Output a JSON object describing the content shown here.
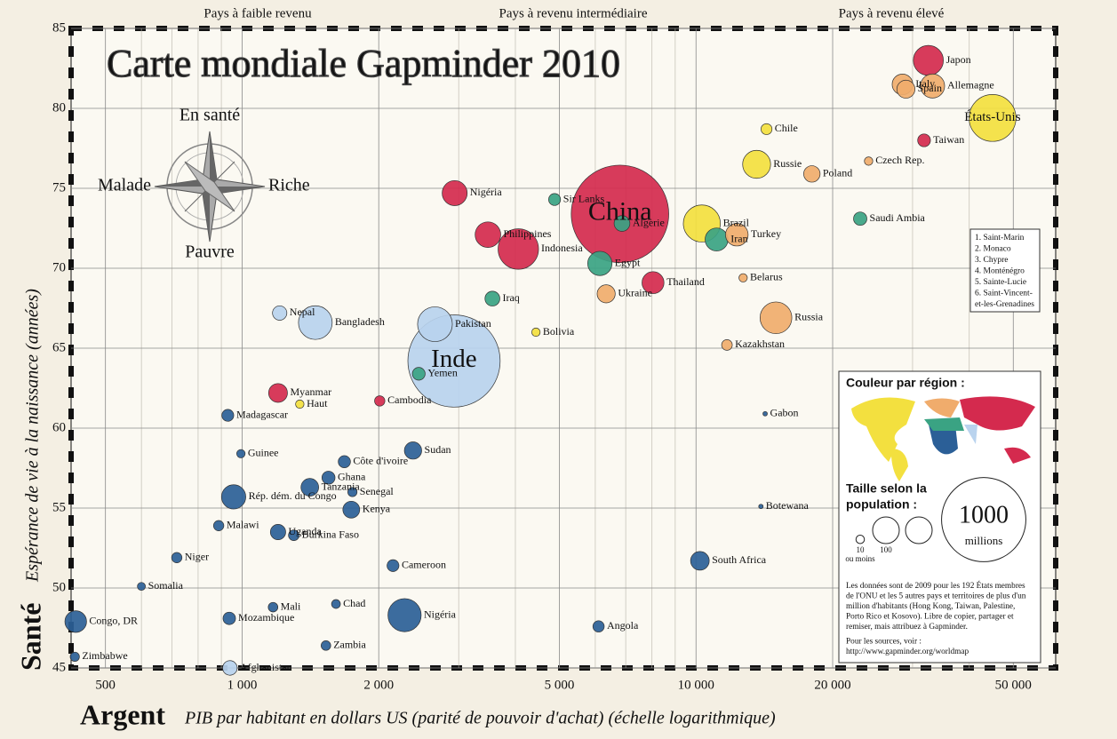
{
  "chart_data": {
    "type": "scatter",
    "title": "Carte mondiale Gapminder 2010",
    "income_bands": [
      "Pays à faible revenu",
      "Pays à revenu intermédiaire",
      "Pays à revenu élevé"
    ],
    "x_label_main": "Argent",
    "x_label": "PIB par habitant en dollars US (parité de pouvoir d'achat) (échelle logarithmique)",
    "y_label_main": "Santé",
    "y_label": "Espérance de vie à la naissance (années)",
    "xscale": "log",
    "xlim": [
      420,
      62000
    ],
    "ylim": [
      45,
      85
    ],
    "xticks": [
      500,
      {
        "value": 1000,
        "label": "1 000"
      },
      {
        "value": 2000,
        "label": "2 000"
      },
      {
        "value": 5000,
        "label": "5 000"
      },
      {
        "value": 10000,
        "label": "10 000"
      },
      {
        "value": 20000,
        "label": "20 000"
      },
      {
        "value": 50000,
        "label": "50 000"
      }
    ],
    "x_minor_grid": [
      600,
      700,
      800,
      900,
      3000,
      4000,
      6000,
      7000,
      8000,
      9000,
      30000,
      40000
    ],
    "yticks": [
      45,
      50,
      55,
      60,
      65,
      70,
      75,
      80,
      85
    ],
    "grid": true,
    "points": [
      {
        "name": "China",
        "x": 6800,
        "y": 73.4,
        "size": 1338,
        "color": "#d42a4e"
      },
      {
        "name": "Inde",
        "x": 2930,
        "y": 64.2,
        "size": 1198,
        "color": "#b9d3ee"
      },
      {
        "name": "États-Unis",
        "x": 45000,
        "y": 79.4,
        "size": 310,
        "color": "#f3e03f"
      },
      {
        "name": "Indonesia",
        "x": 4060,
        "y": 71.2,
        "size": 230,
        "color": "#d42a4e"
      },
      {
        "name": "Brazil",
        "x": 10300,
        "y": 72.8,
        "size": 193,
        "color": "#f3e03f"
      },
      {
        "name": "Pakistan",
        "x": 2660,
        "y": 66.5,
        "size": 170,
        "color": "#b9d3ee"
      },
      {
        "name": "Bangladesh",
        "x": 1450,
        "y": 66.6,
        "size": 160,
        "color": "#b9d3ee"
      },
      {
        "name": "Nigéria",
        "x": 2280,
        "y": 48.3,
        "size": 155,
        "color": "#2b5f97"
      },
      {
        "name": "Russia",
        "x": 15000,
        "y": 66.9,
        "size": 142,
        "color": "#f0ac6c"
      },
      {
        "name": "Japon",
        "x": 32500,
        "y": 83.0,
        "size": 127,
        "color": "#d42a4e"
      },
      {
        "name": "Russie",
        "x": 13600,
        "y": 76.5,
        "size": 110,
        "color": "#f3e03f"
      },
      {
        "name": "Philippines",
        "x": 3480,
        "y": 72.1,
        "size": 92,
        "color": "#d42a4e"
      },
      {
        "name": "Nigéria",
        "x": 2940,
        "y": 74.7,
        "size": 88,
        "color": "#d42a4e"
      },
      {
        "name": "Egypt",
        "x": 6140,
        "y": 70.3,
        "size": 83,
        "color": "#3aa383"
      },
      {
        "name": "Rép. dém. du Congo",
        "x": 958,
        "y": 55.7,
        "size": 83,
        "color": "#2b5f97"
      },
      {
        "name": "Allemagne",
        "x": 33200,
        "y": 81.4,
        "size": 82,
        "color": "#f0ac6c"
      },
      {
        "name": "Iran",
        "x": 11100,
        "y": 71.8,
        "size": 74,
        "color": "#3aa383"
      },
      {
        "name": "Turkey",
        "x": 12300,
        "y": 72.1,
        "size": 72,
        "color": "#f0ac6c"
      },
      {
        "name": "Thailand",
        "x": 8040,
        "y": 69.1,
        "size": 68,
        "color": "#d42a4e"
      },
      {
        "name": "Congo, DR",
        "x": 430,
        "y": 47.9,
        "size": 66,
        "color": "#2b5f97"
      },
      {
        "name": "Italy",
        "x": 28500,
        "y": 81.5,
        "size": 60,
        "color": "#f0ac6c"
      },
      {
        "name": "Myanmar",
        "x": 1200,
        "y": 62.2,
        "size": 50,
        "color": "#d42a4e"
      },
      {
        "name": "South Africa",
        "x": 10200,
        "y": 51.7,
        "size": 49,
        "color": "#2b5f97"
      },
      {
        "name": "Spain",
        "x": 29000,
        "y": 81.2,
        "size": 46,
        "color": "#f0ac6c"
      },
      {
        "name": "Ukraine",
        "x": 6340,
        "y": 68.4,
        "size": 46,
        "color": "#f0ac6c"
      },
      {
        "name": "Tanzania",
        "x": 1410,
        "y": 56.3,
        "size": 44,
        "color": "#2b5f97"
      },
      {
        "name": "Sudan",
        "x": 2380,
        "y": 58.6,
        "size": 42,
        "color": "#2b5f97"
      },
      {
        "name": "Kenya",
        "x": 1740,
        "y": 54.9,
        "size": 40,
        "color": "#2b5f97"
      },
      {
        "name": "Poland",
        "x": 18000,
        "y": 75.9,
        "size": 38,
        "color": "#f0ac6c"
      },
      {
        "name": "Algerie",
        "x": 6870,
        "y": 72.8,
        "size": 35,
        "color": "#3aa383"
      },
      {
        "name": "Uganda",
        "x": 1200,
        "y": 53.5,
        "size": 33,
        "color": "#2b5f97"
      },
      {
        "name": "Iraq",
        "x": 3560,
        "y": 68.1,
        "size": 31,
        "color": "#3aa383"
      },
      {
        "name": "Afghanistan",
        "x": 940,
        "y": 45,
        "size": 30,
        "color": "#b9d3ee"
      },
      {
        "name": "Nepal",
        "x": 1210,
        "y": 67.2,
        "size": 29,
        "color": "#b9d3ee"
      },
      {
        "name": "Saudi Ambia",
        "x": 23000,
        "y": 73.1,
        "size": 25,
        "color": "#3aa383"
      },
      {
        "name": "Ghana",
        "x": 1550,
        "y": 56.9,
        "size": 24,
        "color": "#2b5f97"
      },
      {
        "name": "Yemen",
        "x": 2450,
        "y": 63.4,
        "size": 23,
        "color": "#3aa383"
      },
      {
        "name": "Taiwan",
        "x": 31800,
        "y": 78.0,
        "size": 23,
        "color": "#d42a4e"
      },
      {
        "name": "Mozambique",
        "x": 937,
        "y": 48.1,
        "size": 22,
        "color": "#2b5f97"
      },
      {
        "name": "Côte d'ivoire",
        "x": 1680,
        "y": 57.9,
        "size": 21,
        "color": "#2b5f97"
      },
      {
        "name": "Cameroon",
        "x": 2150,
        "y": 51.4,
        "size": 20,
        "color": "#2b5f97"
      },
      {
        "name": "Madagascar",
        "x": 930,
        "y": 60.8,
        "size": 20,
        "color": "#2b5f97"
      },
      {
        "name": "Sir Lanks",
        "x": 4880,
        "y": 74.3,
        "size": 20,
        "color": "#3aa383"
      },
      {
        "name": "Angola",
        "x": 6100,
        "y": 47.6,
        "size": 18,
        "color": "#2b5f97"
      },
      {
        "name": "Chile",
        "x": 14300,
        "y": 78.7,
        "size": 17,
        "color": "#f3e03f"
      },
      {
        "name": "Burkina Faso",
        "x": 1300,
        "y": 53.3,
        "size": 16,
        "color": "#2b5f97"
      },
      {
        "name": "Kazakhstan",
        "x": 11700,
        "y": 65.2,
        "size": 16,
        "color": "#f0ac6c"
      },
      {
        "name": "Malawi",
        "x": 888,
        "y": 53.9,
        "size": 15,
        "color": "#2b5f97"
      },
      {
        "name": "Niger",
        "x": 718,
        "y": 51.9,
        "size": 15,
        "color": "#2b5f97"
      },
      {
        "name": "Cambodia",
        "x": 2010,
        "y": 61.7,
        "size": 15,
        "color": "#d42a4e"
      },
      {
        "name": "Mali",
        "x": 1170,
        "y": 48.8,
        "size": 13,
        "color": "#2b5f97"
      },
      {
        "name": "Zambia",
        "x": 1530,
        "y": 46.4,
        "size": 13,
        "color": "#2b5f97"
      },
      {
        "name": "Zimbabwe",
        "x": 428,
        "y": 45.7,
        "size": 12,
        "color": "#2b5f97"
      },
      {
        "name": "Senegal",
        "x": 1750,
        "y": 56.0,
        "size": 12,
        "color": "#2b5f97"
      },
      {
        "name": "Chad",
        "x": 1610,
        "y": 49.0,
        "size": 11,
        "color": "#2b5f97"
      },
      {
        "name": "Czech Rep.",
        "x": 24000,
        "y": 76.7,
        "size": 10,
        "color": "#f0ac6c"
      },
      {
        "name": "Belarus",
        "x": 12700,
        "y": 69.4,
        "size": 10,
        "color": "#f0ac6c"
      },
      {
        "name": "Bolivia",
        "x": 4440,
        "y": 66.0,
        "size": 10,
        "color": "#f3e03f"
      },
      {
        "name": "Guinee",
        "x": 994,
        "y": 58.4,
        "size": 10,
        "color": "#2b5f97"
      },
      {
        "name": "Haut",
        "x": 1340,
        "y": 61.5,
        "size": 10,
        "color": "#f3e03f"
      },
      {
        "name": "Somalia",
        "x": 600,
        "y": 50.1,
        "size": 9,
        "color": "#2b5f97"
      },
      {
        "name": "Botewana",
        "x": 13900,
        "y": 55.1,
        "size": 2,
        "color": "#2b5f97"
      },
      {
        "name": "Gabon",
        "x": 14200,
        "y": 60.9,
        "size": 1.5,
        "color": "#2b5f97"
      }
    ]
  },
  "compass": {
    "up": "En santé",
    "left": "Malade",
    "right": "Riche",
    "down": "Pauvre"
  },
  "legend": {
    "color_title": "Couleur par région :",
    "size_title": [
      "Taille selon la",
      "population :"
    ],
    "sizes": [
      10,
      100,
      1000
    ],
    "small_note": "ou moins",
    "unit": "millions",
    "note": [
      "Les données sont de 2009 pour les 192 États membres",
      "de l'ONU et les 5 autres pays et territoires de plus d'un",
      "million d'habitants (Hong Kong, Taiwan, Palestine,",
      "Porto Rico et Kosovo). Libre de copier, partager et",
      "remiser, mais attribuez à Gapminder.",
      "Pour les sources, voir :",
      "http://www.gapminder.org/worldmap"
    ]
  },
  "numbered_list": [
    "1. Saint-Marin",
    "2. Monaco",
    "3. Chypre",
    "4. Monténégro",
    "5. Sainte-Lucie",
    "6. Saint-Vincent-",
    "et-les-Grenadines"
  ]
}
